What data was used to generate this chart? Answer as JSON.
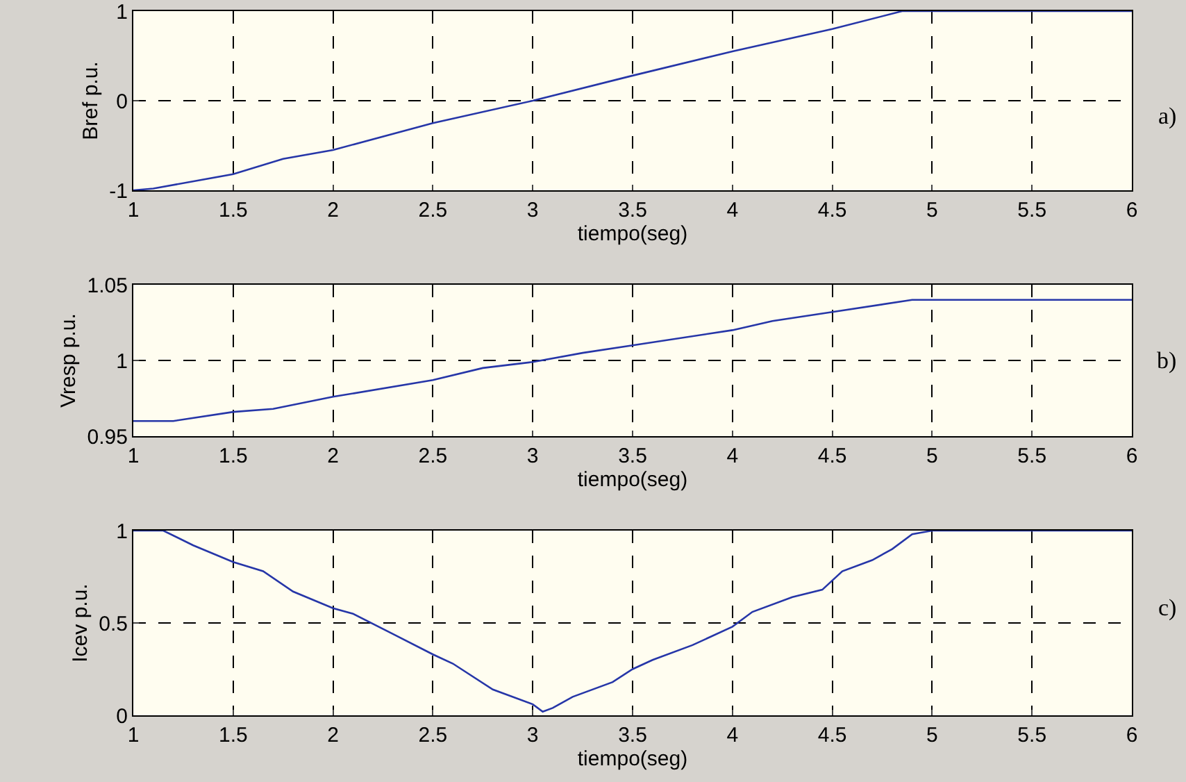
{
  "chart_data": [
    {
      "type": "line",
      "xlabel": "tiempo(seg)",
      "ylabel": "Bref p.u.",
      "annotations": [
        "a)"
      ],
      "color": "#2636a8",
      "grid": true,
      "line_style": "solid",
      "x": [
        1,
        1.1,
        1.5,
        1.75,
        2,
        2.5,
        3,
        3.5,
        4,
        4.5,
        4.85,
        6
      ],
      "values": [
        -1,
        -0.98,
        -0.82,
        -0.65,
        -0.55,
        -0.25,
        0.0,
        0.28,
        0.55,
        0.8,
        1.0,
        1.0
      ],
      "xlim": [
        1,
        6
      ],
      "xticks": [
        1,
        1.5,
        2,
        2.5,
        3,
        3.5,
        4,
        4.5,
        5,
        5.5,
        6
      ],
      "ylim": [
        -1,
        1
      ],
      "yticks": [
        -1,
        0,
        1
      ]
    },
    {
      "type": "line",
      "xlabel": "tiempo(seg)",
      "ylabel": "Vresp p.u.",
      "annotations": [
        "b)"
      ],
      "color": "#2636a8",
      "grid": true,
      "line_style": "solid",
      "x": [
        1,
        1.2,
        1.5,
        1.7,
        2,
        2.5,
        2.75,
        3,
        3.25,
        3.5,
        4,
        4.2,
        4.5,
        4.9,
        6
      ],
      "values": [
        0.96,
        0.96,
        0.966,
        0.968,
        0.976,
        0.987,
        0.995,
        0.999,
        1.005,
        1.01,
        1.02,
        1.026,
        1.032,
        1.04,
        1.04
      ],
      "xlim": [
        1,
        6
      ],
      "xticks": [
        1,
        1.5,
        2,
        2.5,
        3,
        3.5,
        4,
        4.5,
        5,
        5.5,
        6
      ],
      "ylim": [
        0.95,
        1.05
      ],
      "yticks": [
        0.95,
        1,
        1.05
      ]
    },
    {
      "type": "line",
      "xlabel": "tiempo(seg)",
      "ylabel": "Icev p.u.",
      "annotations": [
        "c)"
      ],
      "color": "#2636a8",
      "grid": true,
      "line_style": "solid",
      "x": [
        1,
        1.15,
        1.3,
        1.5,
        1.65,
        1.8,
        2,
        2.1,
        2.3,
        2.5,
        2.6,
        2.8,
        3,
        3.05,
        3.1,
        3.2,
        3.4,
        3.5,
        3.6,
        3.8,
        4,
        4.1,
        4.3,
        4.45,
        4.55,
        4.7,
        4.8,
        4.9,
        5,
        6
      ],
      "values": [
        1,
        1.0,
        0.92,
        0.83,
        0.78,
        0.67,
        0.58,
        0.55,
        0.44,
        0.33,
        0.28,
        0.14,
        0.06,
        0.02,
        0.04,
        0.1,
        0.18,
        0.25,
        0.3,
        0.38,
        0.48,
        0.56,
        0.64,
        0.68,
        0.78,
        0.84,
        0.9,
        0.98,
        1.0,
        1.0
      ],
      "xlim": [
        1,
        6
      ],
      "xticks": [
        1,
        1.5,
        2,
        2.5,
        3,
        3.5,
        4,
        4.5,
        5,
        5.5,
        6
      ],
      "ylim": [
        0,
        1
      ],
      "yticks": [
        0,
        0.5,
        1
      ]
    }
  ]
}
